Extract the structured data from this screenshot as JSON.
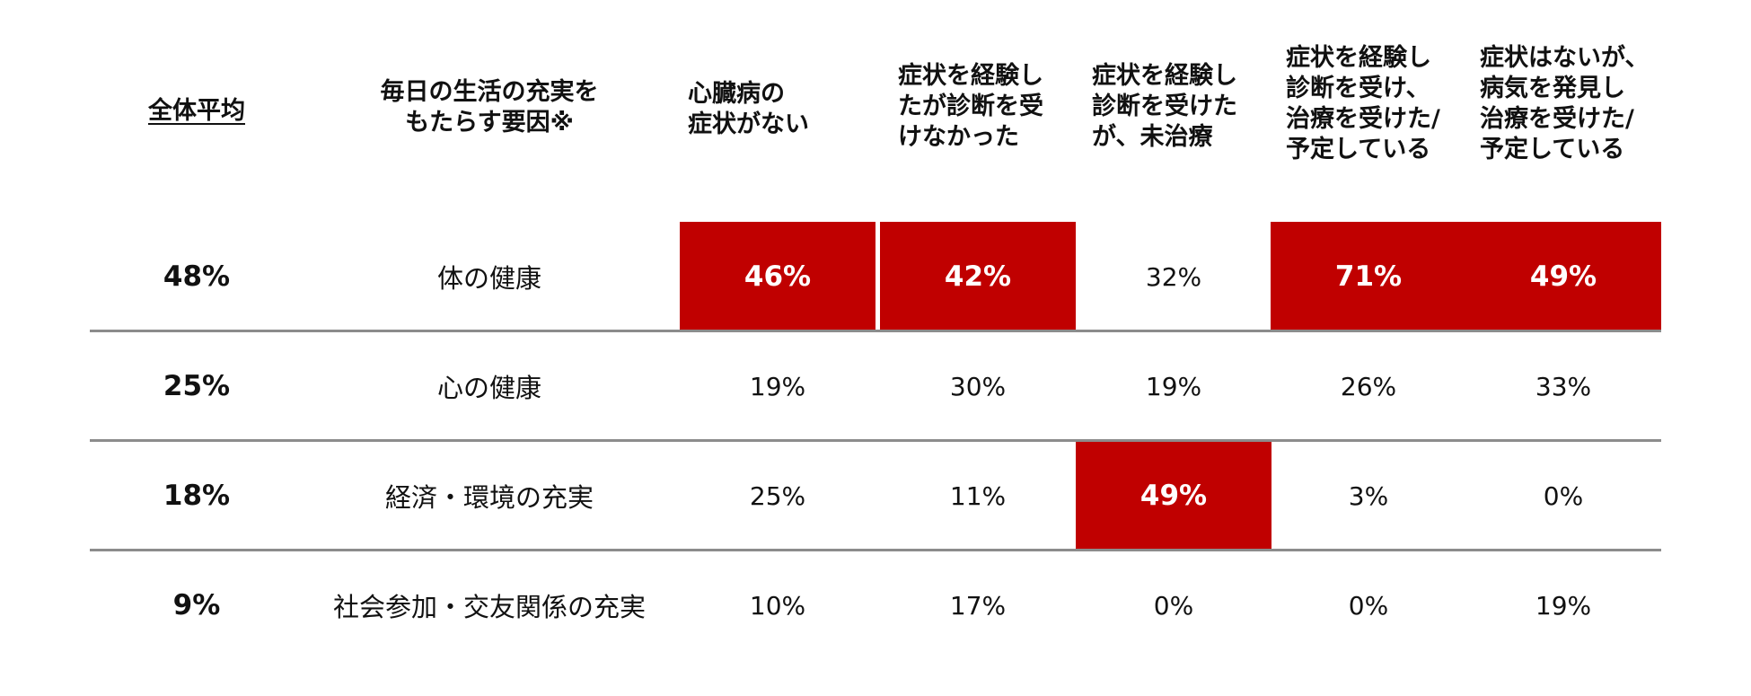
{
  "chart_data": {
    "type": "table",
    "headers": {
      "avg": "全体平均",
      "factor": "毎日の生活の充実を\nもたらす要因※",
      "cols": [
        "心臓病の\n症状がない",
        "症状を経験し\nたが診断を受\nけなかった",
        "症状を経験し\n診断を受けた\nが、未治療",
        "症状を経験し\n診断を受け、\n治療を受けた/\n予定している",
        "症状はないが、\n病気を発見し\n治療を受けた/\n予定している"
      ]
    },
    "rows": [
      {
        "avg": "48%",
        "factor": "体の健康",
        "values": [
          "46%",
          "42%",
          "32%",
          "71%",
          "49%"
        ],
        "highlight": [
          true,
          true,
          false,
          true,
          true
        ]
      },
      {
        "avg": "25%",
        "factor": "心の健康",
        "values": [
          "19%",
          "30%",
          "19%",
          "26%",
          "33%"
        ],
        "highlight": [
          false,
          false,
          false,
          false,
          false
        ]
      },
      {
        "avg": "18%",
        "factor": "経済・環境の充実",
        "values": [
          "25%",
          "11%",
          "49%",
          "3%",
          "0%"
        ],
        "highlight": [
          false,
          false,
          true,
          false,
          false
        ]
      },
      {
        "avg": "9%",
        "factor": "社会参加・交友関係の充実",
        "values": [
          "10%",
          "17%",
          "0%",
          "0%",
          "19%"
        ],
        "highlight": [
          false,
          false,
          false,
          false,
          false
        ]
      }
    ],
    "highlight_color": "#c00000",
    "divider_color": "#8c8c8c"
  }
}
